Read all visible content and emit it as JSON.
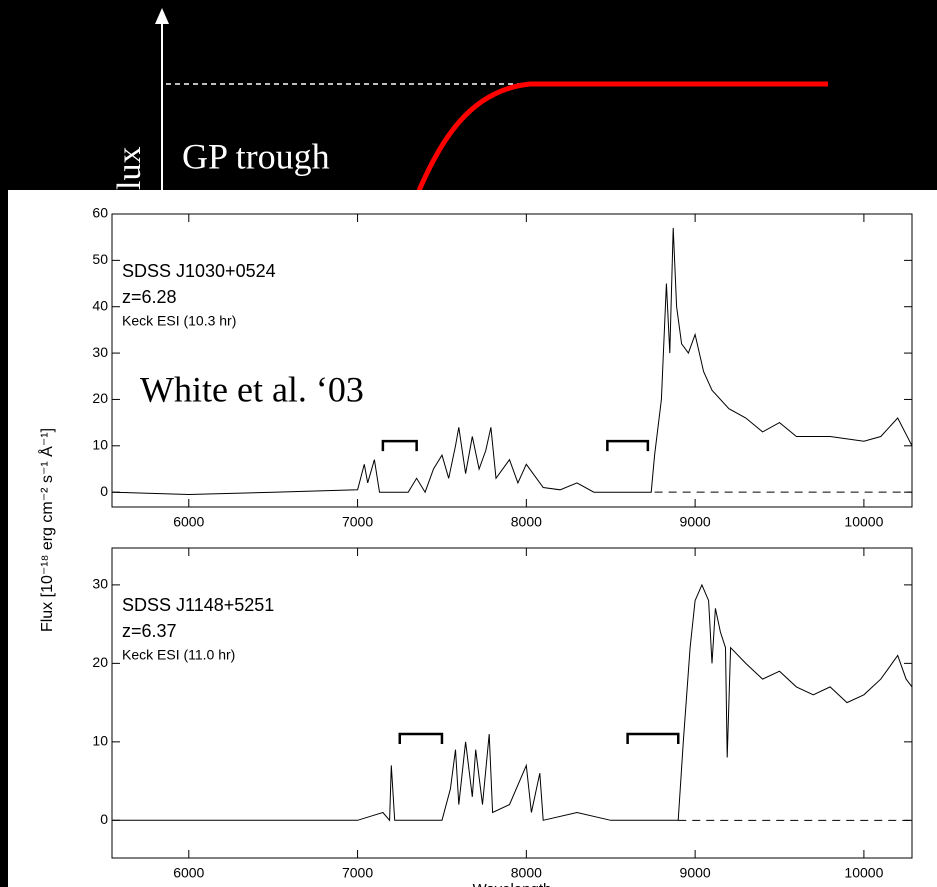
{
  "slide": {
    "axis_fragment": "lux",
    "annotation": "GP trough",
    "citation": "White et al. ‘03"
  },
  "chart_data": [
    {
      "type": "line",
      "annotations": {
        "name": "SDSS J1030+0524",
        "redshift": "z=6.28",
        "exposure": "Keck ESI (10.3 hr)"
      },
      "y_label": "Flux [10⁻¹⁸ erg cm⁻² s⁻¹ Å⁻¹]",
      "color": "#000000",
      "x": [
        5545,
        6000,
        6500,
        7000,
        7040,
        7060,
        7100,
        7130,
        7300,
        7350,
        7400,
        7450,
        7500,
        7540,
        7580,
        7600,
        7640,
        7680,
        7720,
        7760,
        7790,
        7820,
        7900,
        7950,
        8000,
        8100,
        8200,
        8300,
        8400,
        8600,
        8740,
        8760,
        8800,
        8830,
        8850,
        8870,
        8890,
        8920,
        8960,
        9000,
        9050,
        9100,
        9200,
        9300,
        9400,
        9500,
        9600,
        9800,
        10000,
        10100,
        10200,
        10285
      ],
      "values": [
        0,
        -0.5,
        0,
        0.5,
        6,
        2,
        7,
        0,
        0,
        3,
        0,
        5,
        8,
        3,
        10,
        14,
        4,
        12,
        5,
        9,
        14,
        3,
        7,
        2,
        6,
        1,
        0.5,
        2,
        0,
        0,
        0,
        8,
        20,
        45,
        30,
        57,
        40,
        32,
        30,
        34,
        26,
        22,
        18,
        16,
        13,
        15,
        12,
        12,
        11,
        12,
        16,
        10
      ],
      "brackets": [
        {
          "x": [
            7150,
            7350
          ],
          "y": 11
        },
        {
          "x": [
            8480,
            8720
          ],
          "y": 11
        }
      ],
      "dashed_line": {
        "y": 0,
        "x": [
          8760,
          10285
        ]
      },
      "xlim": [
        5545,
        10285
      ],
      "ylim": [
        -3.2,
        60
      ],
      "xticks": [
        6000,
        7000,
        8000,
        9000,
        10000
      ],
      "yticks": [
        0,
        10,
        20,
        30,
        40,
        50,
        60
      ]
    },
    {
      "type": "line",
      "annotations": {
        "name": "SDSS J1148+5251",
        "redshift": "z=6.37",
        "exposure": "Keck ESI (11.0 hr)"
      },
      "x_label": "Wavelength",
      "color": "#000000",
      "x": [
        5545,
        6000,
        7000,
        7150,
        7190,
        7200,
        7220,
        7500,
        7550,
        7580,
        7600,
        7640,
        7680,
        7700,
        7740,
        7780,
        7800,
        7900,
        8000,
        8030,
        8080,
        8100,
        8300,
        8500,
        8900,
        8930,
        8970,
        9000,
        9040,
        9080,
        9100,
        9120,
        9150,
        9180,
        9190,
        9210,
        9300,
        9400,
        9500,
        9600,
        9700,
        9800,
        9900,
        10000,
        10100,
        10200,
        10250,
        10285
      ],
      "values": [
        0,
        0,
        0,
        1,
        0,
        7,
        0,
        0,
        4,
        9,
        2,
        10,
        3,
        9,
        2,
        11,
        1,
        2,
        7,
        1,
        6,
        0,
        1,
        0,
        0,
        10,
        22,
        28,
        30,
        28,
        20,
        27,
        24,
        22,
        8,
        22,
        20,
        18,
        19,
        17,
        16,
        17,
        15,
        16,
        18,
        21,
        18,
        17
      ],
      "brackets": [
        {
          "x": [
            7250,
            7500
          ],
          "y": 11
        },
        {
          "x": [
            8600,
            8900
          ],
          "y": 11
        }
      ],
      "dashed_line": {
        "y": 0,
        "x": [
          8900,
          10285
        ]
      },
      "xlim": [
        5545,
        10285
      ],
      "ylim": [
        -4.8,
        34.7
      ],
      "xticks": [
        6000,
        7000,
        8000,
        9000,
        10000
      ],
      "yticks": [
        0,
        10,
        20,
        30
      ]
    }
  ]
}
